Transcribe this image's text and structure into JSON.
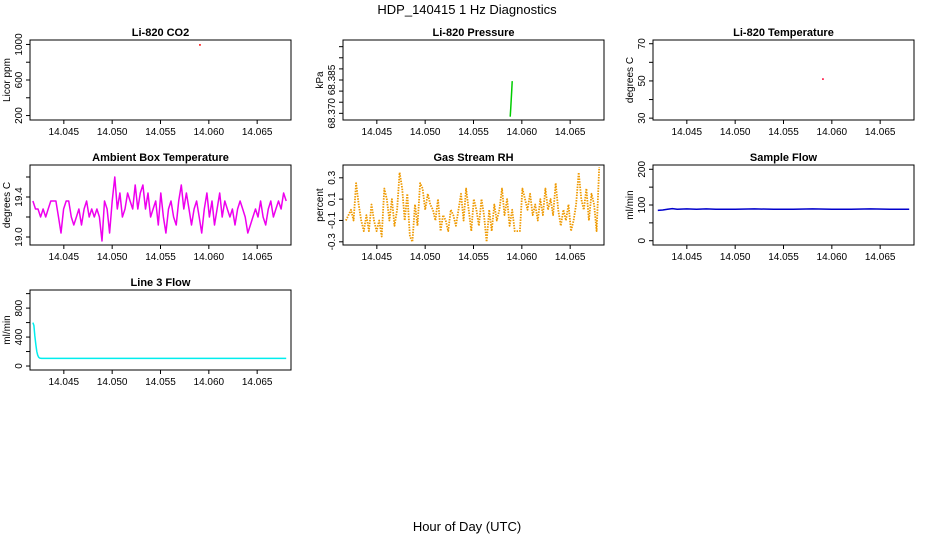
{
  "figure": {
    "title": "HDP_140415  1 Hz Diagnostics",
    "xlabel": "Hour of Day (UTC)"
  },
  "chart_data": [
    {
      "id": "co2",
      "type": "line",
      "title": "Li-820 CO2",
      "ylabel": "Licor ppm",
      "xlim": [
        14.0415,
        14.0685
      ],
      "ylim": [
        150,
        1050
      ],
      "xticks": [
        "14.045",
        "14.050",
        "14.055",
        "14.060",
        "14.065"
      ],
      "yticks": [
        200,
        600,
        1000
      ],
      "minor_yticks": [
        400,
        800
      ],
      "series": [
        {
          "color": "#ff0000",
          "style": "dot",
          "x": [
            14.059,
            14.0592
          ],
          "y": [
            995,
            995
          ]
        }
      ]
    },
    {
      "id": "pressure",
      "type": "line",
      "title": "Li-820 Pressure",
      "ylabel": "kPa",
      "xlim": [
        14.0415,
        14.0685
      ],
      "ylim": [
        68.367,
        68.403
      ],
      "xticks": [
        "14.045",
        "14.050",
        "14.055",
        "14.060",
        "14.065"
      ],
      "yticks": [
        68.37,
        68.385
      ],
      "ytick_labels": [
        "68.370",
        "68.385"
      ],
      "minor_yticks": [
        68.375,
        68.38,
        68.39,
        68.395,
        68.4
      ],
      "series": [
        {
          "color": "#00cc00",
          "style": "line",
          "x": [
            14.0588,
            14.05885,
            14.0589,
            14.05895,
            14.059
          ],
          "y": [
            68.3685,
            68.372,
            68.376,
            68.38,
            68.3845
          ]
        }
      ]
    },
    {
      "id": "temperature",
      "type": "line",
      "title": "Li-820 Temperature",
      "ylabel": "degrees C",
      "xlim": [
        14.0415,
        14.0685
      ],
      "ylim": [
        29,
        72
      ],
      "xticks": [
        "14.045",
        "14.050",
        "14.055",
        "14.060",
        "14.065"
      ],
      "yticks": [
        30,
        50,
        70
      ],
      "minor_yticks": [
        40,
        60
      ],
      "series": [
        {
          "color": "#ff0033",
          "style": "dot",
          "x": [
            14.059,
            14.0592
          ],
          "y": [
            51,
            51
          ]
        }
      ]
    },
    {
      "id": "ambient",
      "type": "line",
      "title": "Ambient Box Temperature",
      "ylabel": "degrees C",
      "xlim": [
        14.0415,
        14.0685
      ],
      "ylim": [
        18.92,
        19.72
      ],
      "xticks": [
        "14.045",
        "14.050",
        "14.055",
        "14.060",
        "14.065"
      ],
      "yticks": [
        19.0,
        19.4
      ],
      "ytick_labels": [
        "19.0",
        "19.4"
      ],
      "minor_yticks": [
        19.2,
        19.6
      ],
      "series": [
        {
          "color": "#ee00ee",
          "style": "line",
          "x_start": 14.0418,
          "x_end": 14.068,
          "y": [
            19.36,
            19.28,
            19.28,
            19.2,
            19.28,
            19.2,
            19.28,
            19.36,
            19.36,
            19.36,
            19.2,
            19.04,
            19.28,
            19.36,
            19.36,
            19.2,
            19.12,
            19.2,
            19.28,
            19.12,
            19.28,
            19.36,
            19.2,
            19.28,
            19.2,
            19.28,
            19.2,
            18.96,
            19.36,
            19.28,
            19.04,
            19.36,
            19.6,
            19.28,
            19.44,
            19.2,
            19.28,
            19.44,
            19.36,
            19.28,
            19.52,
            19.28,
            19.44,
            19.52,
            19.28,
            19.44,
            19.2,
            19.28,
            19.36,
            19.12,
            19.44,
            19.2,
            19.04,
            19.28,
            19.36,
            19.2,
            19.12,
            19.36,
            19.52,
            19.28,
            19.44,
            19.28,
            19.12,
            19.28,
            19.36,
            19.2,
            19.04,
            19.28,
            19.44,
            19.2,
            19.36,
            19.12,
            19.28,
            19.44,
            19.2,
            19.36,
            19.28,
            19.2,
            19.28,
            19.12,
            19.28,
            19.36,
            19.28,
            19.2,
            19.04,
            19.12,
            19.2,
            19.28,
            19.2,
            19.36,
            19.2,
            19.12,
            19.28,
            19.36,
            19.2,
            19.28,
            19.36,
            19.28,
            19.44,
            19.36
          ]
        }
      ]
    },
    {
      "id": "rh",
      "type": "line",
      "title": "Gas Stream RH",
      "ylabel": "percent",
      "xlim": [
        14.0415,
        14.0685
      ],
      "ylim": [
        -0.33,
        0.42
      ],
      "xticks": [
        "14.045",
        "14.050",
        "14.055",
        "14.060",
        "14.065"
      ],
      "yticks": [
        -0.3,
        -0.1,
        0.1,
        0.3
      ],
      "ytick_labels": [
        "-0.3",
        "-0.1",
        "0.1",
        "0.3"
      ],
      "series": [
        {
          "color": "#ee9900",
          "style": "dot",
          "x_start": 14.0418,
          "x_end": 14.068,
          "y": [
            -0.1,
            -0.05,
            0.0,
            -0.1,
            0.25,
            0.05,
            -0.1,
            -0.2,
            -0.05,
            -0.2,
            0.05,
            -0.1,
            -0.2,
            -0.1,
            -0.25,
            0.2,
            0.1,
            -0.1,
            0.1,
            -0.15,
            0.0,
            0.35,
            0.2,
            -0.1,
            0.15,
            -0.25,
            -0.3,
            0.05,
            -0.15,
            0.25,
            0.2,
            0.0,
            0.15,
            0.05,
            0.0,
            -0.1,
            0.1,
            -0.2,
            -0.05,
            -0.1,
            -0.2,
            0.0,
            -0.05,
            -0.15,
            0.0,
            0.15,
            -0.1,
            0.2,
            0.0,
            -0.2,
            0.1,
            0.0,
            -0.15,
            0.1,
            -0.05,
            -0.3,
            0.0,
            -0.2,
            0.05,
            -0.1,
            0.0,
            0.2,
            -0.05,
            0.1,
            -0.15,
            0.0,
            -0.2,
            -0.2,
            -0.2,
            0.2,
            0.1,
            0.0,
            0.15,
            -0.05,
            0.05,
            -0.1,
            0.1,
            -0.05,
            0.2,
            0.0,
            0.1,
            -0.05,
            0.25,
            0.0,
            -0.15,
            0.0,
            -0.1,
            0.05,
            -0.2,
            -0.1,
            0.05,
            0.35,
            0.1,
            0.0,
            0.2,
            -0.1,
            0.15,
            0.05,
            -0.2,
            0.4
          ]
        }
      ]
    },
    {
      "id": "sample_flow",
      "type": "line",
      "title": "Sample Flow",
      "ylabel": "ml/min",
      "xlim": [
        14.0415,
        14.0685
      ],
      "ylim": [
        -12,
        212
      ],
      "xticks": [
        "14.045",
        "14.050",
        "14.055",
        "14.060",
        "14.065"
      ],
      "yticks": [
        0,
        100,
        200
      ],
      "minor_yticks": [
        50,
        150
      ],
      "series": [
        {
          "color": "#0000cc",
          "style": "line",
          "x": [
            14.042,
            14.0425,
            14.043,
            14.0435,
            14.044,
            14.045,
            14.046,
            14.047,
            14.048,
            14.05,
            14.052,
            14.054,
            14.056,
            14.058,
            14.06,
            14.062,
            14.064,
            14.066,
            14.068
          ],
          "y": [
            85,
            86,
            88,
            90,
            88,
            89,
            88,
            89,
            88,
            88,
            89,
            88,
            88,
            89,
            88,
            88,
            89,
            88,
            88
          ]
        }
      ]
    },
    {
      "id": "line3",
      "type": "line",
      "title": "Line 3 Flow",
      "ylabel": "ml/min",
      "xlim": [
        14.0415,
        14.0685
      ],
      "ylim": [
        -55,
        1050
      ],
      "xticks": [
        "14.045",
        "14.050",
        "14.055",
        "14.060",
        "14.065"
      ],
      "yticks": [
        0,
        400,
        800
      ],
      "minor_yticks": [
        200,
        600,
        1000
      ],
      "series": [
        {
          "color": "#00eeee",
          "style": "line",
          "x": [
            14.0418,
            14.0419,
            14.042,
            14.0421,
            14.0422,
            14.0423,
            14.0424,
            14.0425,
            14.0427,
            14.043,
            14.044,
            14.046,
            14.048,
            14.05,
            14.052,
            14.054,
            14.056,
            14.058,
            14.06,
            14.062,
            14.064,
            14.066,
            14.068
          ],
          "y": [
            600,
            560,
            420,
            300,
            200,
            150,
            120,
            110,
            105,
            105,
            105,
            105,
            105,
            105,
            105,
            105,
            105,
            105,
            105,
            105,
            105,
            105,
            105
          ]
        }
      ]
    }
  ]
}
